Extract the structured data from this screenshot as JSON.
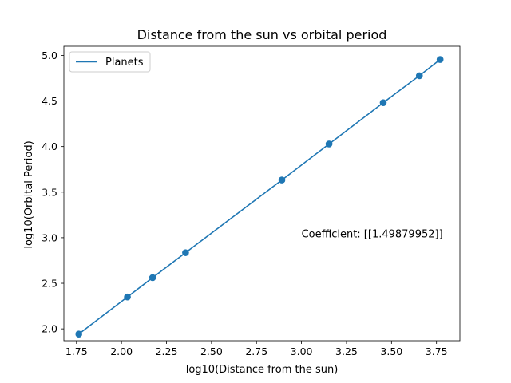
{
  "chart_data": {
    "type": "line",
    "title": "Distance from the sun vs orbital period",
    "xlabel": "log10(Distance from the sun)",
    "ylabel": "log10(Orbital Period)",
    "xlim": [
      1.68,
      3.88
    ],
    "ylim": [
      1.87,
      5.1
    ],
    "xticks": [
      "1.75",
      "2.00",
      "2.25",
      "2.50",
      "2.75",
      "3.00",
      "3.25",
      "3.50",
      "3.75"
    ],
    "yticks": [
      "2.0",
      "2.5",
      "3.0",
      "3.5",
      "4.0",
      "4.5",
      "5.0"
    ],
    "grid": false,
    "legend": {
      "position": "top-left",
      "entries": [
        "Planets"
      ]
    },
    "series": [
      {
        "name": "Planets",
        "color": "#1f77b4",
        "x": [
          1.763,
          2.033,
          2.173,
          2.356,
          2.891,
          3.153,
          3.454,
          3.655,
          3.77
        ],
        "y": [
          1.943,
          2.35,
          2.562,
          2.836,
          3.633,
          4.028,
          4.481,
          4.777,
          4.955
        ]
      }
    ],
    "annotations": [
      {
        "text": "Coefficient: [[1.49879952]]",
        "x": 3.0,
        "y": 3.0
      }
    ]
  }
}
